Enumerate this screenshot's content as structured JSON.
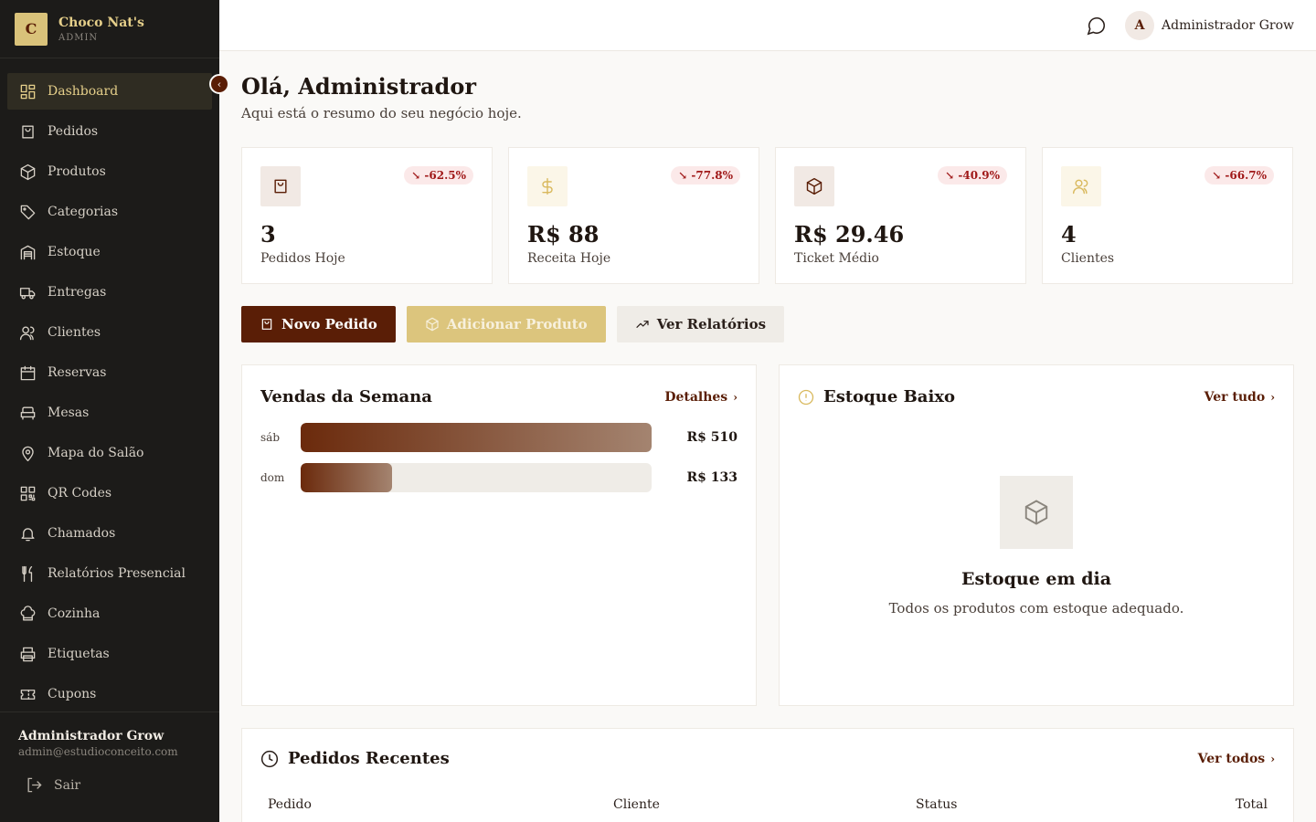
{
  "brand": {
    "logo_letter": "C",
    "name": "Choco Nat's",
    "role": "ADMIN"
  },
  "nav": [
    {
      "label": "Dashboard",
      "icon": "dashboard-icon",
      "active": true
    },
    {
      "label": "Pedidos",
      "icon": "shopping-bag-icon"
    },
    {
      "label": "Produtos",
      "icon": "package-icon"
    },
    {
      "label": "Categorias",
      "icon": "tag-icon"
    },
    {
      "label": "Estoque",
      "icon": "warehouse-icon"
    },
    {
      "label": "Entregas",
      "icon": "truck-icon"
    },
    {
      "label": "Clientes",
      "icon": "users-icon"
    },
    {
      "label": "Reservas",
      "icon": "calendar-icon"
    },
    {
      "label": "Mesas",
      "icon": "armchair-icon"
    },
    {
      "label": "Mapa do Salão",
      "icon": "map-pin-icon"
    },
    {
      "label": "QR Codes",
      "icon": "qr-code-icon"
    },
    {
      "label": "Chamados",
      "icon": "bell-icon"
    },
    {
      "label": "Relatórios Presencial",
      "icon": "utensils-icon"
    },
    {
      "label": "Cozinha",
      "icon": "chef-hat-icon"
    },
    {
      "label": "Etiquetas",
      "icon": "printer-icon"
    },
    {
      "label": "Cupons",
      "icon": "ticket-icon"
    }
  ],
  "sidebar_user": {
    "name": "Administrador Grow",
    "email": "admin@estudioconceito.com",
    "logout": "Sair"
  },
  "topbar": {
    "avatar_letter": "A",
    "user_name": "Administrador Grow"
  },
  "header": {
    "greeting": "Olá, Administrador",
    "subtitle": "Aqui está o resumo do seu negócio hoje."
  },
  "stats": [
    {
      "value": "3",
      "label": "Pedidos Hoje",
      "change": "↘ -62.5%",
      "icon": "shopping-bag-icon"
    },
    {
      "value": "R$ 88",
      "label": "Receita Hoje",
      "change": "↘ -77.8%",
      "icon": "dollar-icon"
    },
    {
      "value": "R$ 29.46",
      "label": "Ticket Médio",
      "change": "↘ -40.9%",
      "icon": "package-icon"
    },
    {
      "value": "4",
      "label": "Clientes",
      "change": "↘ -66.7%",
      "icon": "users-icon"
    }
  ],
  "actions": {
    "new_order": "Novo Pedido",
    "add_product": "Adicionar Produto",
    "reports": "Ver Relatórios"
  },
  "sales": {
    "title": "Vendas da Semana",
    "link": "Detalhes",
    "rows": [
      {
        "day": "sáb",
        "value": "R$ 510",
        "fraction": 1.0
      },
      {
        "day": "dom",
        "value": "R$ 133",
        "fraction": 0.26
      }
    ]
  },
  "stock": {
    "title": "Estoque Baixo",
    "link": "Ver tudo",
    "empty_title": "Estoque em dia",
    "empty_text": "Todos os produtos com estoque adequado."
  },
  "recent": {
    "title": "Pedidos Recentes",
    "link": "Ver todos",
    "columns": [
      "Pedido",
      "Cliente",
      "Status",
      "Total"
    ]
  },
  "colors": {
    "primary": "#5a1e06",
    "gold": "#dcc57d",
    "sidebar": "#1c1b19",
    "negative": "#a01818"
  }
}
